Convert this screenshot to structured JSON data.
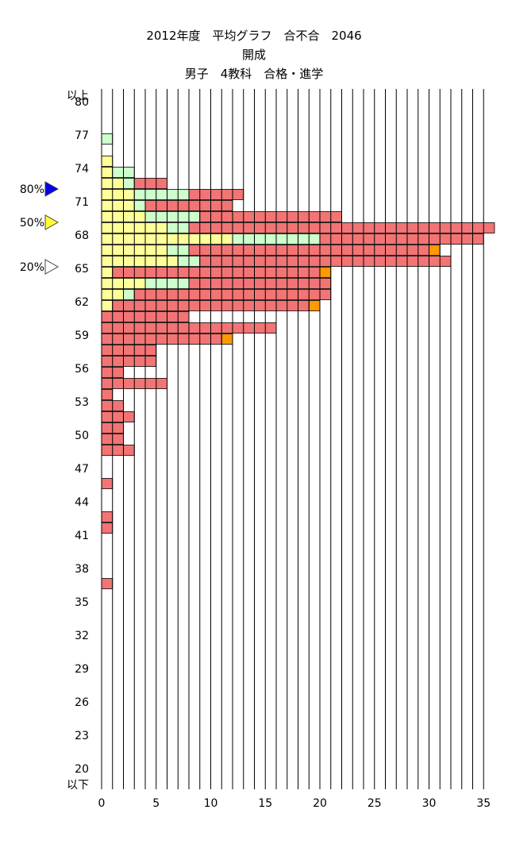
{
  "title_lines": [
    "2012年度　平均グラフ　合不合　2046",
    "開成",
    "男子　4教科　合格・進学"
  ],
  "colors": {
    "yellow": "#ffff99",
    "green": "#ccffcc",
    "red": "#f27474",
    "orange": "#ff9900",
    "grid": "#000000"
  },
  "chart_data": {
    "type": "bar",
    "orientation": "horizontal",
    "stacked": true,
    "title": "2012年度　平均グラフ　合不合　2046",
    "subtitle": "開成 / 男子　4教科　合格・進学",
    "xlim": [
      0,
      35
    ],
    "x_ticks": [
      "0",
      "5",
      "10",
      "15",
      "20",
      "25",
      "30",
      "35"
    ],
    "y_top_label": "以上",
    "y_bottom_label": "以下",
    "y_ticks": [
      "80",
      "77",
      "74",
      "71",
      "68",
      "65",
      "62",
      "59",
      "56",
      "53",
      "50",
      "47",
      "44",
      "41",
      "38",
      "35",
      "32",
      "29",
      "26",
      "23",
      "20"
    ],
    "categories": [
      "以上",
      "80",
      "79",
      "78",
      "77",
      "76",
      "75",
      "74",
      "73",
      "72",
      "71",
      "70",
      "69",
      "68",
      "67",
      "66",
      "65",
      "64",
      "63",
      "62",
      "61",
      "60",
      "59",
      "58",
      "57",
      "56",
      "55",
      "54",
      "53",
      "52",
      "51",
      "50",
      "49",
      "48",
      "47",
      "46",
      "45",
      "44",
      "43",
      "42",
      "41",
      "40",
      "39",
      "38",
      "37",
      "36",
      "35",
      "34",
      "33",
      "32",
      "31",
      "30",
      "29",
      "28",
      "27",
      "26",
      "25",
      "24",
      "23",
      "22",
      "21",
      "20",
      "以下"
    ],
    "series": [
      {
        "color": "#ffff99",
        "values": [
          0,
          0,
          0,
          0,
          0,
          0,
          1,
          1,
          2,
          3,
          3,
          4,
          6,
          12,
          6,
          7,
          1,
          4,
          2,
          1,
          0,
          0,
          0,
          0,
          0,
          0,
          0,
          0,
          0,
          0,
          0,
          0,
          0,
          0,
          0,
          0,
          0,
          0,
          0,
          0,
          0,
          0,
          0,
          0,
          0,
          0,
          0,
          0,
          0,
          0,
          0,
          0,
          0,
          0,
          0,
          0,
          0,
          0,
          0,
          0,
          0,
          0,
          0
        ]
      },
      {
        "color": "#ccffcc",
        "values": [
          0,
          0,
          0,
          0,
          1,
          0,
          0,
          2,
          1,
          5,
          1,
          5,
          2,
          8,
          2,
          2,
          0,
          4,
          1,
          0,
          0,
          0,
          0,
          0,
          0,
          0,
          0,
          0,
          0,
          0,
          0,
          0,
          0,
          0,
          0,
          0,
          0,
          0,
          0,
          0,
          0,
          0,
          0,
          0,
          0,
          0,
          0,
          0,
          0,
          0,
          0,
          0,
          0,
          0,
          0,
          0,
          0,
          0,
          0,
          0,
          0,
          0,
          0
        ]
      },
      {
        "color": "#f27474",
        "values": [
          0,
          0,
          0,
          0,
          0,
          0,
          0,
          0,
          3,
          5,
          8,
          13,
          28,
          15,
          22,
          23,
          19,
          13,
          18,
          18,
          8,
          16,
          11,
          5,
          5,
          2,
          6,
          1,
          2,
          3,
          2,
          2,
          3,
          0,
          0,
          1,
          0,
          0,
          1,
          1,
          0,
          0,
          0,
          0,
          1,
          0,
          0,
          0,
          0,
          0,
          0,
          0,
          0,
          0,
          0,
          0,
          0,
          0,
          0,
          0,
          0,
          0,
          0
        ]
      },
      {
        "color": "#ff9900",
        "values": [
          0,
          0,
          0,
          0,
          0,
          0,
          0,
          0,
          0,
          0,
          0,
          0,
          0,
          0,
          1,
          0,
          1,
          0,
          0,
          1,
          0,
          0,
          1,
          0,
          0,
          0,
          0,
          0,
          0,
          0,
          0,
          0,
          0,
          0,
          0,
          0,
          0,
          0,
          0,
          0,
          0,
          0,
          0,
          0,
          0,
          0,
          0,
          0,
          0,
          0,
          0,
          0,
          0,
          0,
          0,
          0,
          0,
          0,
          0,
          0,
          0,
          0,
          0
        ]
      }
    ],
    "markers": [
      {
        "label": "80%",
        "score": 72.5,
        "color": "#0000ee"
      },
      {
        "label": "50%",
        "score": 69.5,
        "color": "#ffff33"
      },
      {
        "label": "20%",
        "score": 65.5,
        "color": "#ffffff"
      }
    ],
    "grid": true
  }
}
